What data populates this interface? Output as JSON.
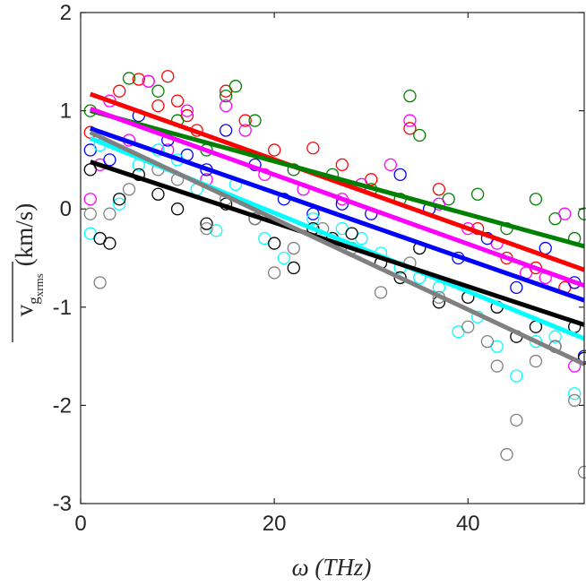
{
  "chart_data": {
    "type": "scatter",
    "title": "",
    "xlabel": "ω (THz)",
    "ylabel_base": "v",
    "ylabel_sub": "g",
    "ylabel_subsub": "x",
    "ylabel_subsubsub": "rms",
    "ylabel_units": "(km/s)",
    "xlim": [
      0,
      52
    ],
    "ylim": [
      -3,
      2
    ],
    "xticks": [
      0,
      20,
      40
    ],
    "yticks": [
      -3,
      -2,
      -1,
      0,
      1,
      2
    ],
    "xtick_labels": [
      "0",
      "20",
      "40"
    ],
    "ytick_labels": [
      "-3",
      "-2",
      "-1",
      "0",
      "1",
      "2"
    ],
    "grid": false,
    "series": [
      {
        "name": "red",
        "color": "#ff0000",
        "fit": [
          [
            1,
            1.17
          ],
          [
            52,
            -0.62
          ]
        ],
        "points": [
          [
            1,
            0.78
          ],
          [
            4,
            1.2
          ],
          [
            6,
            1.32
          ],
          [
            7,
            1.3
          ],
          [
            8,
            1.05
          ],
          [
            9,
            1.35
          ],
          [
            10,
            1.1
          ],
          [
            11,
            0.95
          ],
          [
            12,
            0.8
          ],
          [
            15,
            1.2
          ],
          [
            17,
            0.9
          ],
          [
            20,
            0.6
          ],
          [
            24,
            0.62
          ],
          [
            27,
            0.45
          ],
          [
            30,
            0.3
          ],
          [
            34,
            0.82
          ],
          [
            37,
            0.2
          ],
          [
            41,
            -0.2
          ],
          [
            44,
            -0.5
          ],
          [
            47,
            -0.6
          ],
          [
            50,
            -0.8
          ]
        ]
      },
      {
        "name": "green",
        "color": "#008000",
        "fit": [
          [
            1,
            1.0
          ],
          [
            52,
            -0.38
          ]
        ],
        "points": [
          [
            1,
            1.0
          ],
          [
            5,
            1.33
          ],
          [
            8,
            1.2
          ],
          [
            10,
            0.9
          ],
          [
            13,
            0.6
          ],
          [
            15,
            1.15
          ],
          [
            16,
            1.25
          ],
          [
            18,
            0.9
          ],
          [
            22,
            0.4
          ],
          [
            26,
            0.35
          ],
          [
            30,
            0.2
          ],
          [
            33,
            0.1
          ],
          [
            34,
            1.15
          ],
          [
            35,
            0.75
          ],
          [
            38,
            0.1
          ],
          [
            41,
            0.15
          ],
          [
            44,
            -0.2
          ],
          [
            47,
            0.1
          ],
          [
            49,
            -0.1
          ],
          [
            51,
            -0.3
          ],
          [
            52,
            -0.05
          ]
        ]
      },
      {
        "name": "magenta",
        "color": "#ff00ff",
        "fit": [
          [
            1,
            1.02
          ],
          [
            52,
            -0.78
          ]
        ],
        "points": [
          [
            1,
            0.1
          ],
          [
            2,
            0.45
          ],
          [
            3,
            1.1
          ],
          [
            5,
            0.7
          ],
          [
            7,
            1.3
          ],
          [
            9,
            0.6
          ],
          [
            11,
            1.0
          ],
          [
            13,
            0.3
          ],
          [
            15,
            1.05
          ],
          [
            17,
            0.8
          ],
          [
            19,
            0.35
          ],
          [
            23,
            0.2
          ],
          [
            27,
            0.1
          ],
          [
            29,
            0.25
          ],
          [
            32,
            0.45
          ],
          [
            34,
            0.9
          ],
          [
            37,
            0.05
          ],
          [
            40,
            -0.2
          ],
          [
            43,
            -0.35
          ],
          [
            46,
            -0.65
          ],
          [
            48,
            -0.7
          ],
          [
            50,
            -0.05
          ],
          [
            51,
            -1.6
          ]
        ]
      },
      {
        "name": "blue",
        "color": "#0000ff",
        "fit": [
          [
            1,
            0.82
          ],
          [
            52,
            -0.93
          ]
        ],
        "points": [
          [
            1,
            0.6
          ],
          [
            3,
            0.5
          ],
          [
            6,
            0.95
          ],
          [
            9,
            0.7
          ],
          [
            11,
            0.55
          ],
          [
            13,
            0.4
          ],
          [
            15,
            0.8
          ],
          [
            18,
            0.45
          ],
          [
            21,
            0.1
          ],
          [
            24,
            -0.05
          ],
          [
            27,
            0.05
          ],
          [
            30,
            -0.05
          ],
          [
            33,
            0.35
          ],
          [
            36,
            0.0
          ],
          [
            39,
            -0.5
          ],
          [
            42,
            -0.3
          ],
          [
            45,
            -0.8
          ],
          [
            48,
            -0.4
          ],
          [
            51,
            -0.75
          ],
          [
            52,
            -1.5
          ]
        ]
      },
      {
        "name": "cyan",
        "color": "#00ffff",
        "fit": [
          [
            1,
            0.72
          ],
          [
            52,
            -1.32
          ]
        ],
        "points": [
          [
            1,
            -0.25
          ],
          [
            2,
            0.65
          ],
          [
            4,
            0.05
          ],
          [
            6,
            0.45
          ],
          [
            8,
            0.6
          ],
          [
            10,
            0.5
          ],
          [
            12,
            0.2
          ],
          [
            14,
            -0.22
          ],
          [
            16,
            0.25
          ],
          [
            19,
            -0.3
          ],
          [
            21,
            -0.5
          ],
          [
            24,
            -0.1
          ],
          [
            27,
            -0.2
          ],
          [
            29,
            -0.3
          ],
          [
            31,
            -0.45
          ],
          [
            33,
            -0.6
          ],
          [
            35,
            -0.7
          ],
          [
            37,
            -0.8
          ],
          [
            39,
            -1.25
          ],
          [
            41,
            -1.1
          ],
          [
            43,
            -1.4
          ],
          [
            45,
            -1.7
          ],
          [
            47,
            -1.35
          ],
          [
            49,
            -1.3
          ],
          [
            51,
            -1.88
          ]
        ]
      },
      {
        "name": "black",
        "color": "#000000",
        "fit": [
          [
            1,
            0.48
          ],
          [
            52,
            -1.18
          ]
        ],
        "points": [
          [
            1,
            0.4
          ],
          [
            2,
            -0.3
          ],
          [
            3,
            -0.35
          ],
          [
            4,
            0.1
          ],
          [
            6,
            0.35
          ],
          [
            8,
            0.15
          ],
          [
            10,
            0.0
          ],
          [
            13,
            -0.15
          ],
          [
            15,
            0.05
          ],
          [
            18,
            -0.1
          ],
          [
            20,
            -0.35
          ],
          [
            22,
            -0.6
          ],
          [
            24,
            -0.2
          ],
          [
            26,
            -0.3
          ],
          [
            28,
            -0.25
          ],
          [
            31,
            -0.55
          ],
          [
            33,
            -0.7
          ],
          [
            35,
            -0.4
          ],
          [
            37,
            -0.95
          ],
          [
            40,
            -0.9
          ],
          [
            43,
            -1.0
          ],
          [
            45,
            -1.3
          ],
          [
            47,
            -1.2
          ],
          [
            49,
            -1.4
          ],
          [
            51,
            -1.2
          ],
          [
            52,
            -1.52
          ]
        ]
      },
      {
        "name": "gray",
        "color": "#808080",
        "fit": [
          [
            1,
            0.78
          ],
          [
            52,
            -1.58
          ]
        ],
        "points": [
          [
            1,
            -0.05
          ],
          [
            2,
            -0.75
          ],
          [
            3,
            -0.05
          ],
          [
            5,
            0.2
          ],
          [
            8,
            0.4
          ],
          [
            10,
            0.3
          ],
          [
            13,
            -0.2
          ],
          [
            15,
            0.1
          ],
          [
            18,
            -0.1
          ],
          [
            20,
            -0.65
          ],
          [
            22,
            -0.4
          ],
          [
            25,
            -0.2
          ],
          [
            28,
            -0.4
          ],
          [
            31,
            -0.85
          ],
          [
            34,
            -0.55
          ],
          [
            37,
            -0.9
          ],
          [
            40,
            -1.2
          ],
          [
            42,
            -1.35
          ],
          [
            43,
            -1.6
          ],
          [
            44,
            -2.5
          ],
          [
            45,
            -2.15
          ],
          [
            47,
            -1.55
          ],
          [
            49,
            -1.4
          ],
          [
            51,
            -1.95
          ],
          [
            52,
            -2.68
          ]
        ]
      }
    ]
  }
}
